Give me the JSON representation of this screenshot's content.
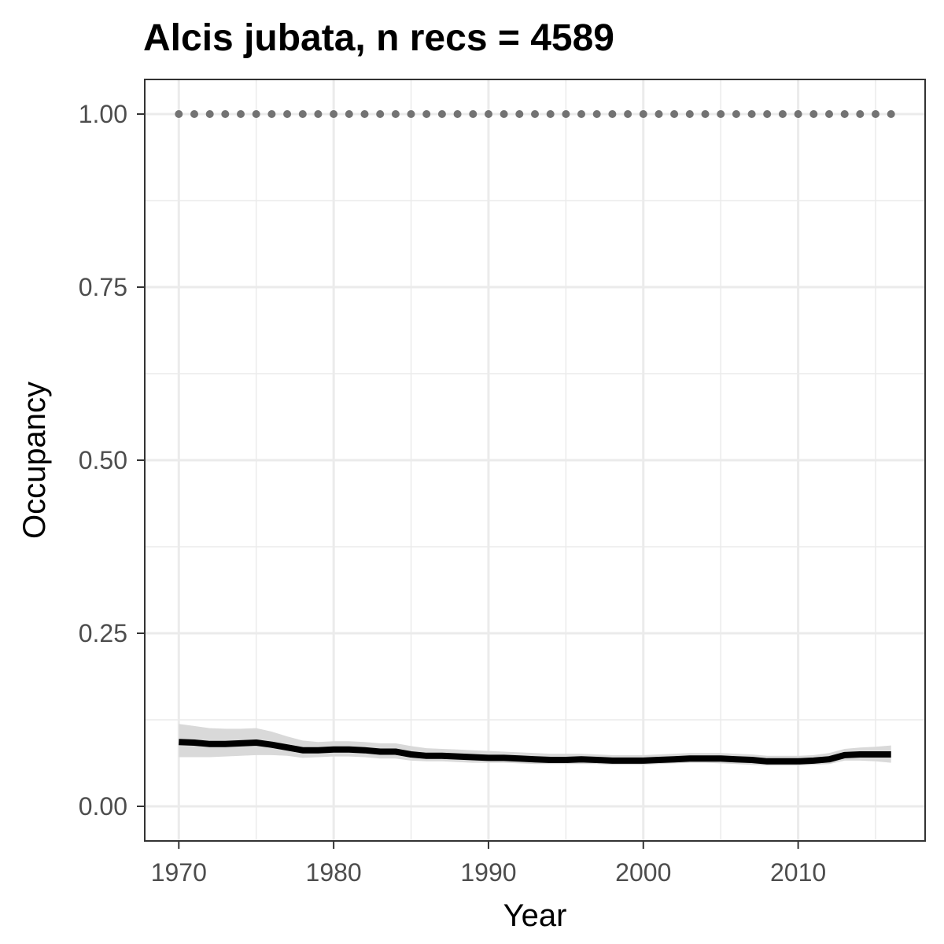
{
  "chart_data": {
    "type": "line",
    "title": "Alcis jubata, n recs = 4589",
    "xlabel": "Year",
    "ylabel": "Occupancy",
    "xlim": [
      1967.8,
      2018.2
    ],
    "ylim": [
      -0.05,
      1.05
    ],
    "x_ticks": [
      1970,
      1980,
      1990,
      2000,
      2010
    ],
    "x_tick_labels": [
      "1970",
      "1980",
      "1990",
      "2000",
      "2010"
    ],
    "x_minor_ticks": [
      1975,
      1985,
      1995,
      2005,
      2015
    ],
    "y_ticks": [
      0,
      0.25,
      0.5,
      0.75,
      1
    ],
    "y_tick_labels": [
      "0.00",
      "0.25",
      "0.50",
      "0.75",
      "1.00"
    ],
    "y_minor_ticks": [
      0.125,
      0.375,
      0.625,
      0.875
    ],
    "grid": true,
    "legend": "none",
    "colors": {
      "line": "#000000",
      "ribbon": "#d9d9d9",
      "dotted": "#737373",
      "grid": "#ebebeb",
      "panel_border": "#333333",
      "tick_label": "#4d4d4d"
    },
    "x": [
      1970,
      1971,
      1972,
      1973,
      1974,
      1975,
      1976,
      1977,
      1978,
      1979,
      1980,
      1981,
      1982,
      1983,
      1984,
      1985,
      1986,
      1987,
      1988,
      1989,
      1990,
      1991,
      1992,
      1993,
      1994,
      1995,
      1996,
      1997,
      1998,
      1999,
      2000,
      2001,
      2002,
      2003,
      2004,
      2005,
      2006,
      2007,
      2008,
      2009,
      2010,
      2011,
      2012,
      2013,
      2014,
      2015,
      2016
    ],
    "series": [
      {
        "values": [
          0.093,
          0.092,
          0.09,
          0.09,
          0.091,
          0.092,
          0.089,
          0.085,
          0.081,
          0.081,
          0.082,
          0.082,
          0.081,
          0.079,
          0.079,
          0.075,
          0.073,
          0.073,
          0.072,
          0.071,
          0.07,
          0.07,
          0.069,
          0.068,
          0.067,
          0.067,
          0.068,
          0.067,
          0.066,
          0.066,
          0.066,
          0.067,
          0.068,
          0.069,
          0.069,
          0.069,
          0.068,
          0.067,
          0.065,
          0.065,
          0.065,
          0.066,
          0.068,
          0.074,
          0.075,
          0.075,
          0.075
        ],
        "lower": [
          0.071,
          0.071,
          0.071,
          0.072,
          0.073,
          0.074,
          0.074,
          0.073,
          0.07,
          0.071,
          0.072,
          0.072,
          0.071,
          0.069,
          0.069,
          0.066,
          0.065,
          0.065,
          0.064,
          0.063,
          0.063,
          0.063,
          0.062,
          0.061,
          0.061,
          0.061,
          0.061,
          0.061,
          0.06,
          0.06,
          0.06,
          0.061,
          0.062,
          0.063,
          0.063,
          0.062,
          0.061,
          0.06,
          0.059,
          0.059,
          0.059,
          0.06,
          0.061,
          0.066,
          0.066,
          0.065,
          0.063
        ],
        "upper": [
          0.119,
          0.116,
          0.113,
          0.112,
          0.112,
          0.113,
          0.108,
          0.101,
          0.095,
          0.093,
          0.094,
          0.094,
          0.093,
          0.091,
          0.091,
          0.087,
          0.084,
          0.083,
          0.082,
          0.081,
          0.08,
          0.079,
          0.078,
          0.077,
          0.076,
          0.076,
          0.076,
          0.075,
          0.074,
          0.074,
          0.074,
          0.075,
          0.076,
          0.077,
          0.077,
          0.077,
          0.076,
          0.075,
          0.073,
          0.073,
          0.073,
          0.074,
          0.077,
          0.083,
          0.085,
          0.086,
          0.088
        ]
      },
      {
        "values": [
          1,
          1,
          1,
          1,
          1,
          1,
          1,
          1,
          1,
          1,
          1,
          1,
          1,
          1,
          1,
          1,
          1,
          1,
          1,
          1,
          1,
          1,
          1,
          1,
          1,
          1,
          1,
          1,
          1,
          1,
          1,
          1,
          1,
          1,
          1,
          1,
          1,
          1,
          1,
          1,
          1,
          1,
          1,
          1,
          1,
          1,
          1
        ]
      }
    ]
  }
}
